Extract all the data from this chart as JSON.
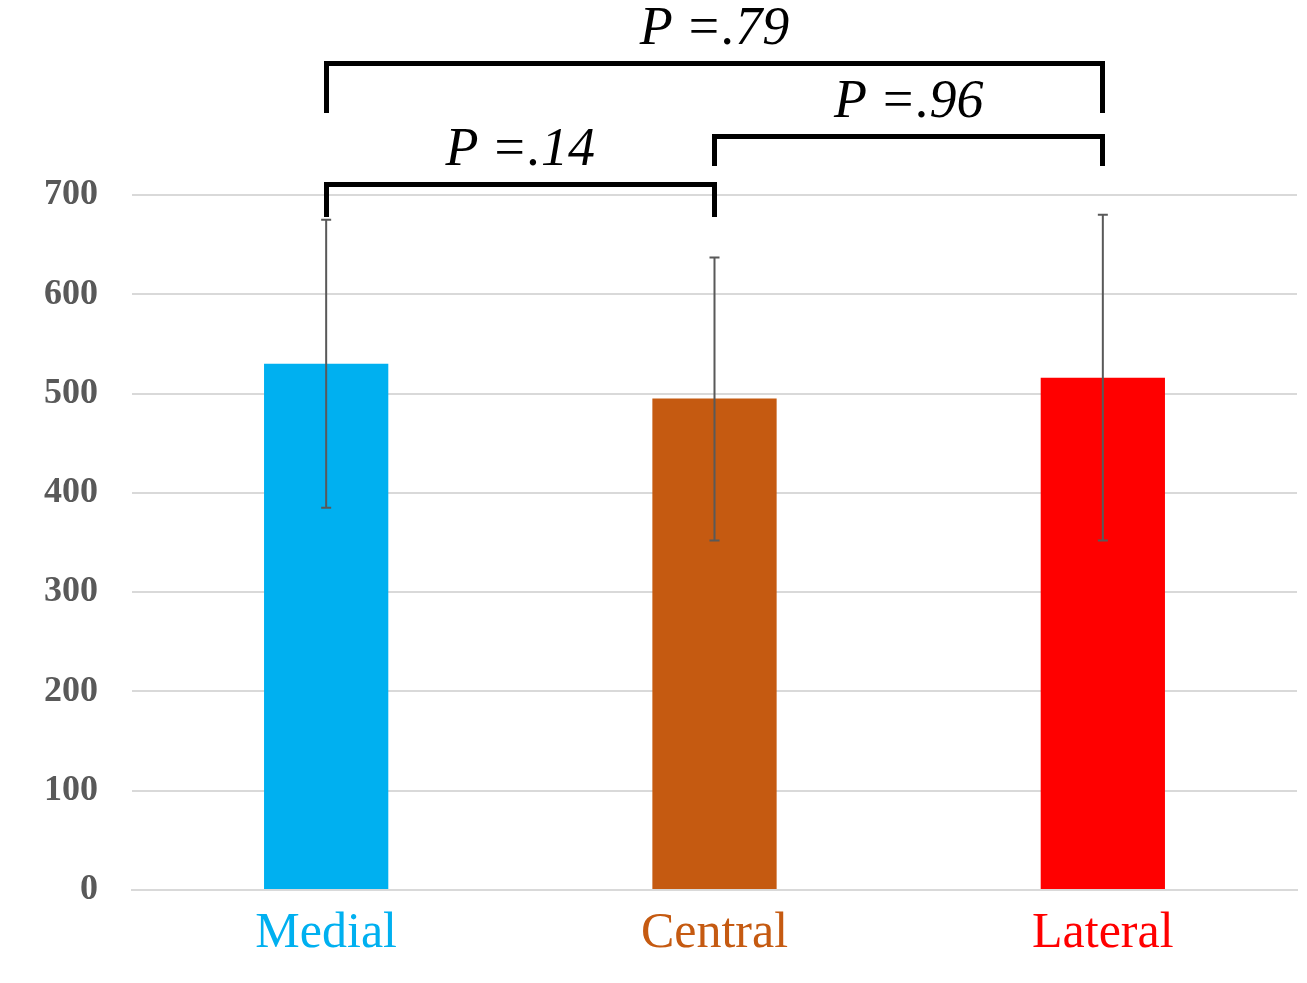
{
  "chart_data": {
    "type": "bar",
    "categories": [
      "Medial",
      "Central",
      "Lateral"
    ],
    "values": [
      530,
      495,
      516
    ],
    "colors": [
      "#00b0f0",
      "#c55a11",
      "#ff0000"
    ],
    "errors": [
      [
        385,
        675
      ],
      [
        352,
        637
      ],
      [
        352,
        680
      ]
    ],
    "ylim": [
      0,
      700
    ],
    "yticks": [
      0,
      100,
      200,
      300,
      400,
      500,
      600,
      700
    ],
    "grid": "y",
    "annotations": [
      "P =.14",
      "P =.96",
      "P =.79"
    ]
  }
}
